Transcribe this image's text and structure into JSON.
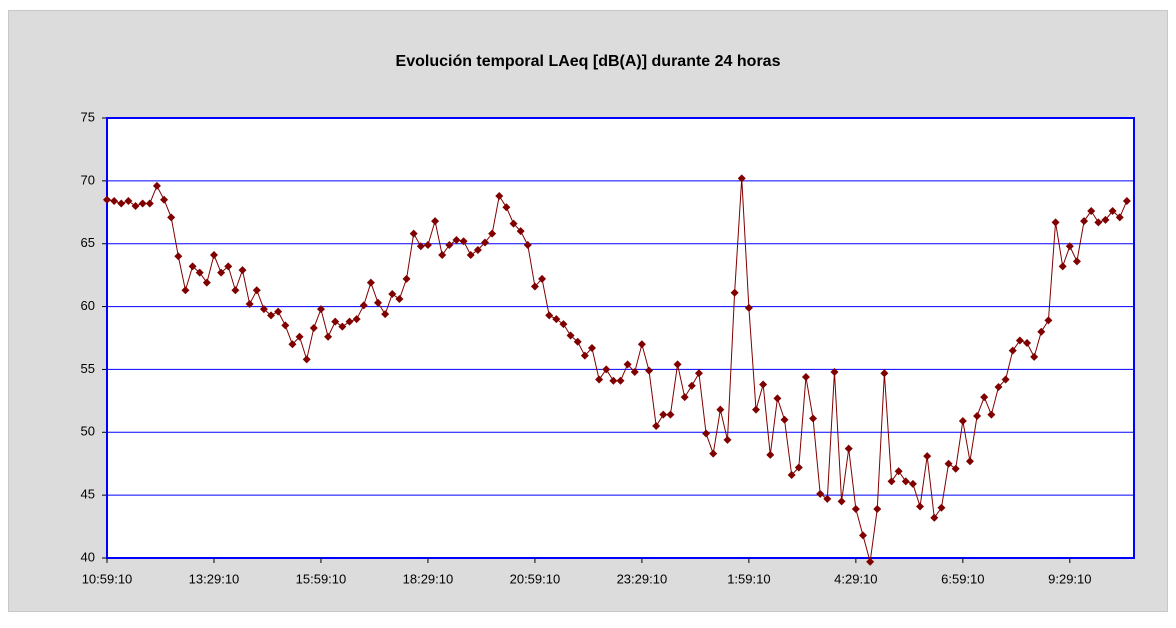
{
  "chart_data": {
    "type": "line",
    "title": "Evolución temporal LAeq [dB(A)] durante 24 horas",
    "categories": [
      "10:59:10",
      null,
      null,
      null,
      null,
      null,
      null,
      null,
      null,
      null,
      null,
      null,
      null,
      null,
      null,
      "13:29:10",
      null,
      null,
      null,
      null,
      null,
      null,
      null,
      null,
      null,
      null,
      null,
      null,
      null,
      null,
      "15:59:10",
      null,
      null,
      null,
      null,
      null,
      null,
      null,
      null,
      null,
      null,
      null,
      null,
      null,
      null,
      "18:29:10",
      null,
      null,
      null,
      null,
      null,
      null,
      null,
      null,
      null,
      null,
      null,
      null,
      null,
      null,
      "20:59:10",
      null,
      null,
      null,
      null,
      null,
      null,
      null,
      null,
      null,
      null,
      null,
      null,
      null,
      null,
      "23:29:10",
      null,
      null,
      null,
      null,
      null,
      null,
      null,
      null,
      null,
      null,
      null,
      null,
      null,
      null,
      "1:59:10",
      null,
      null,
      null,
      null,
      null,
      null,
      null,
      null,
      null,
      null,
      null,
      null,
      null,
      null,
      "4:29:10",
      null,
      null,
      null,
      null,
      null,
      null,
      null,
      null,
      null,
      null,
      null,
      null,
      null,
      null,
      "6:59:10",
      null,
      null,
      null,
      null,
      null,
      null,
      null,
      null,
      null,
      null,
      null,
      null,
      null,
      null,
      "9:29:10",
      null,
      null,
      null,
      null,
      null,
      null,
      null,
      null
    ],
    "series": [
      {
        "color": "#800000",
        "values": [
          68.5,
          68.4,
          68.2,
          68.4,
          68.0,
          68.2,
          68.2,
          69.6,
          68.5,
          67.1,
          64.0,
          61.3,
          63.2,
          62.7,
          61.9,
          64.1,
          62.7,
          63.2,
          61.3,
          62.9,
          60.2,
          61.3,
          59.8,
          59.3,
          59.6,
          58.5,
          57.0,
          57.6,
          55.8,
          58.3,
          59.8,
          57.6,
          58.8,
          58.4,
          58.8,
          59.0,
          60.1,
          61.9,
          60.3,
          59.4,
          61.0,
          60.6,
          62.2,
          65.8,
          64.8,
          64.9,
          66.8,
          64.1,
          64.9,
          65.3,
          65.2,
          64.1,
          64.5,
          65.1,
          65.8,
          68.8,
          67.9,
          66.6,
          66.0,
          64.9,
          61.6,
          62.2,
          59.3,
          59.0,
          58.6,
          57.7,
          57.2,
          56.1,
          56.7,
          54.2,
          55.0,
          54.1,
          54.1,
          55.4,
          54.8,
          57.0,
          54.9,
          50.5,
          51.4,
          51.4,
          55.4,
          52.8,
          53.7,
          54.7,
          49.9,
          48.3,
          51.8,
          49.4,
          61.1,
          70.2,
          59.9,
          51.8,
          53.8,
          48.2,
          52.7,
          51.0,
          46.6,
          47.2,
          54.4,
          51.1,
          45.1,
          44.7,
          54.8,
          44.5,
          48.7,
          43.9,
          41.8,
          39.7,
          43.9,
          54.7,
          46.1,
          46.9,
          46.1,
          45.9,
          44.1,
          48.1,
          43.2,
          44.0,
          47.5,
          47.1,
          50.9,
          47.7,
          51.3,
          52.8,
          51.4,
          53.6,
          54.2,
          56.5,
          57.3,
          57.1,
          56.0,
          58.0,
          58.9,
          66.7,
          63.2,
          64.8,
          63.6,
          66.8,
          67.6,
          66.7,
          66.9,
          67.6,
          67.1,
          68.4
        ]
      }
    ],
    "ylim": [
      40,
      75
    ],
    "yticks": [
      40,
      45,
      50,
      55,
      60,
      65,
      70,
      75
    ],
    "grid": true
  }
}
